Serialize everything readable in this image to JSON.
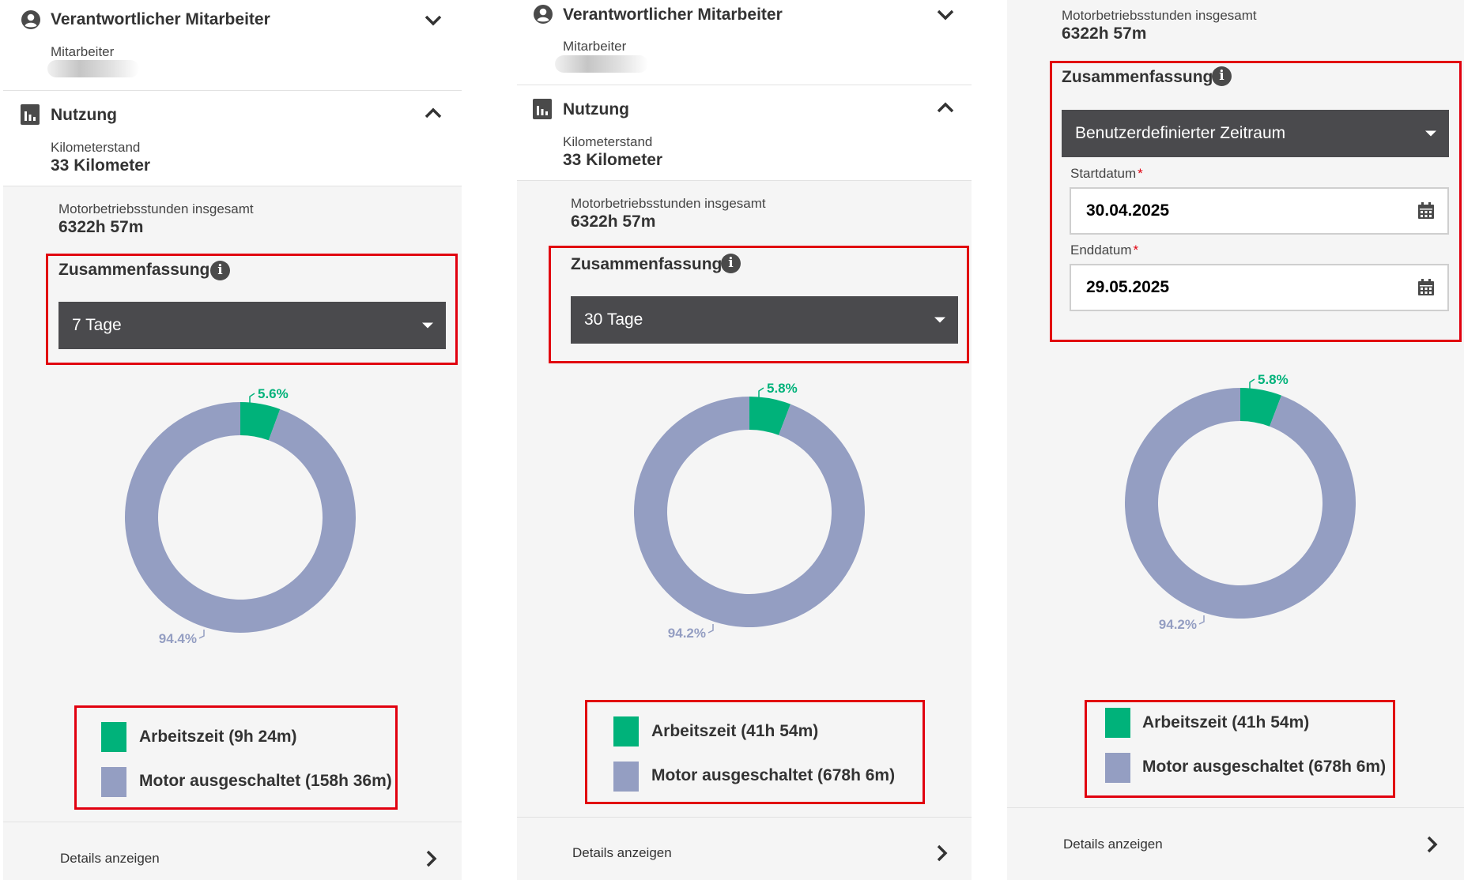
{
  "panels": [
    {
      "employee": {
        "title": "Verantwortlicher Mitarbeiter",
        "label": "Mitarbeiter"
      },
      "usage": {
        "title": "Nutzung",
        "odometer_label": "Kilometerstand",
        "odometer_value": "33 Kilometer"
      },
      "engine_hours_label": "Motorbetriebsstunden insgesamt",
      "engine_hours_value": "6322h 57m",
      "summary": {
        "title": "Zusammenfassung",
        "info_icon": "i",
        "period": "7 Tage"
      },
      "legend": {
        "working": "Arbeitszeit (9h 24m)",
        "off": "Motor ausgeschaltet (158h 36m)"
      },
      "details_label": "Details anzeigen"
    },
    {
      "employee": {
        "title": "Verantwortlicher Mitarbeiter",
        "label": "Mitarbeiter"
      },
      "usage": {
        "title": "Nutzung",
        "odometer_label": "Kilometerstand",
        "odometer_value": "33 Kilometer"
      },
      "engine_hours_label": "Motorbetriebsstunden insgesamt",
      "engine_hours_value": "6322h 57m",
      "summary": {
        "title": "Zusammenfassung",
        "info_icon": "i",
        "period": "30 Tage"
      },
      "legend": {
        "working": "Arbeitszeit (41h 54m)",
        "off": "Motor ausgeschaltet (678h 6m)"
      },
      "details_label": "Details anzeigen"
    },
    {
      "engine_hours_label": "Motorbetriebsstunden insgesamt",
      "engine_hours_value": "6322h 57m",
      "summary": {
        "title": "Zusammenfassung",
        "info_icon": "i",
        "period": "Benutzerdefinierter Zeitraum"
      },
      "start_date": {
        "label": "Startdatum",
        "required": "*",
        "value": "30.04.2025"
      },
      "end_date": {
        "label": "Enddatum",
        "required": "*",
        "value": "29.05.2025"
      },
      "legend": {
        "working": "Arbeitszeit (41h 54m)",
        "off": "Motor ausgeschaltet (678h 6m)"
      },
      "details_label": "Details anzeigen"
    }
  ],
  "colors": {
    "working": "#00b27a",
    "off": "#949ec2",
    "highlight": "#e1000f",
    "select_bg": "#4a4a4d"
  },
  "chart_data": [
    {
      "type": "pie",
      "variant": "donut",
      "categories": [
        "Arbeitszeit",
        "Motor ausgeschaltet"
      ],
      "values": [
        5.6,
        94.4
      ],
      "labels": [
        "5.6%",
        "94.4%"
      ]
    },
    {
      "type": "pie",
      "variant": "donut",
      "categories": [
        "Arbeitszeit",
        "Motor ausgeschaltet"
      ],
      "values": [
        5.8,
        94.2
      ],
      "labels": [
        "5.8%",
        "94.2%"
      ]
    },
    {
      "type": "pie",
      "variant": "donut",
      "categories": [
        "Arbeitszeit",
        "Motor ausgeschaltet"
      ],
      "values": [
        5.8,
        94.2
      ],
      "labels": [
        "5.8%",
        "94.2%"
      ]
    }
  ]
}
